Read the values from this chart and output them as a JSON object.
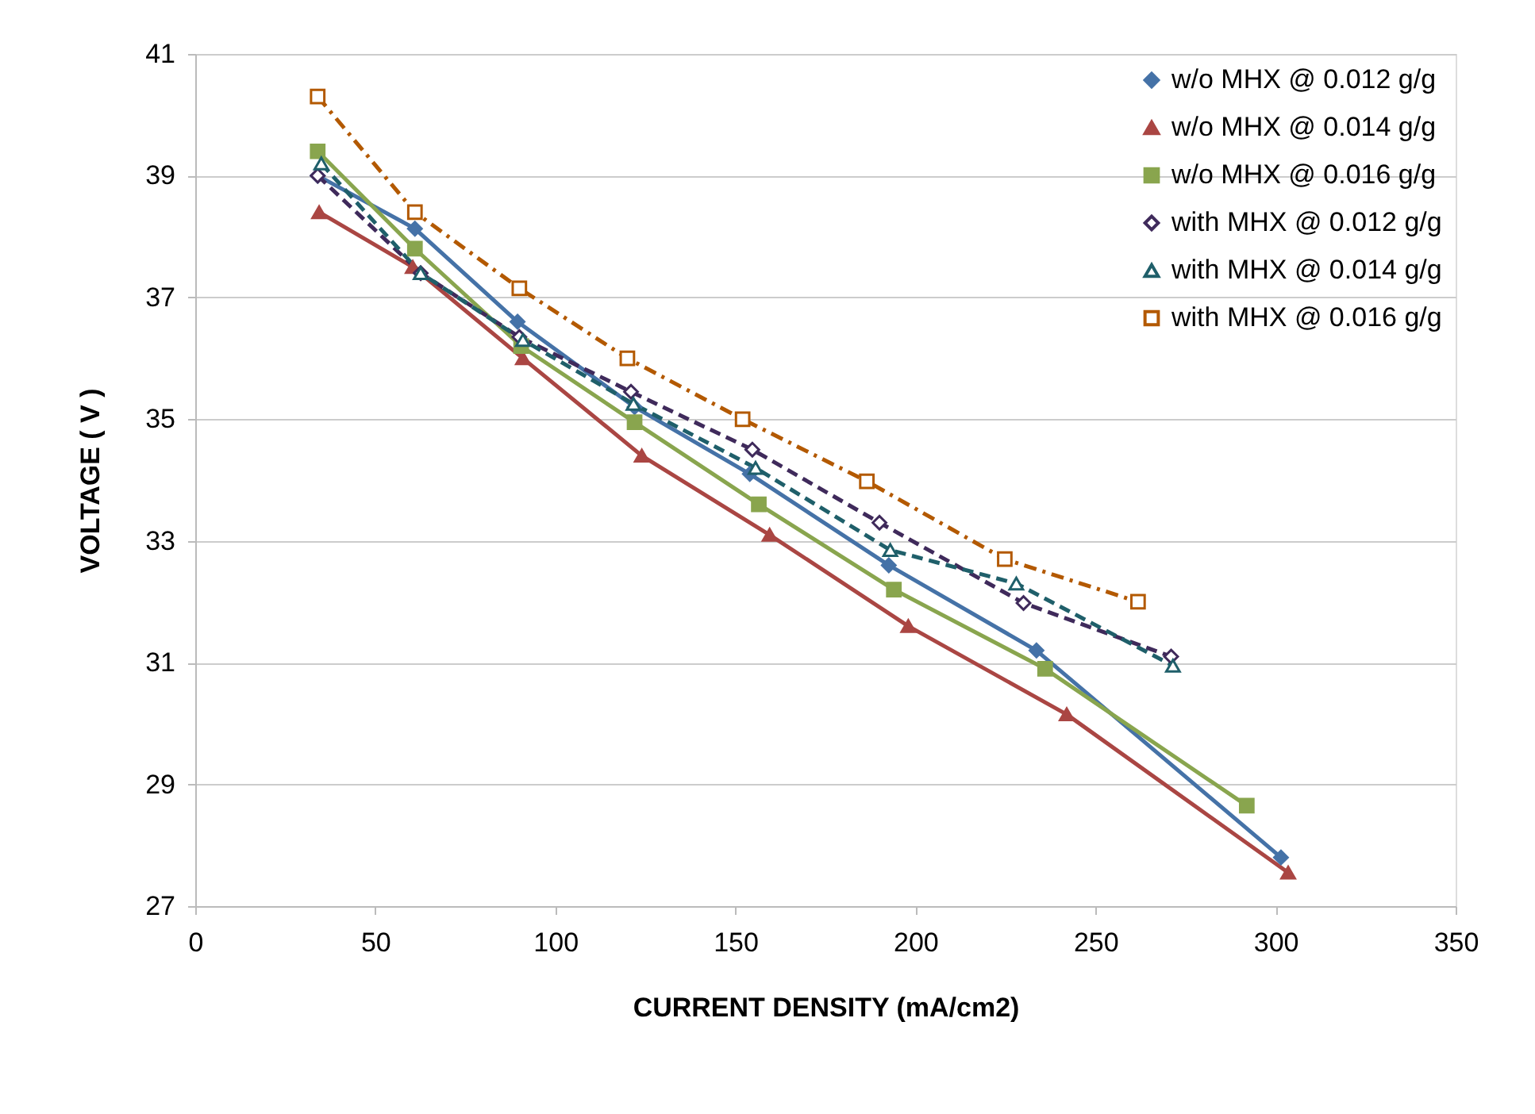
{
  "chart_data": {
    "type": "line",
    "xlabel": "CURRENT DENSITY  (mA/cm2)",
    "ylabel": "VOLTAGE  ( V )",
    "xlim": [
      0,
      350
    ],
    "xticks": [
      0,
      50,
      100,
      150,
      200,
      250,
      300,
      350
    ],
    "ylim": [
      27,
      41
    ],
    "yticks": [
      27,
      29,
      31,
      33,
      35,
      37,
      39,
      41
    ],
    "grid": "y",
    "legend": "top right",
    "series": [
      {
        "name": "w/o MHX @ 0.012 g/g",
        "color": "#4572a7",
        "marker": "diamond",
        "line_style": "solid",
        "x": [
          34,
          61,
          89.5,
          122,
          154,
          192.6,
          233.6,
          301.5
        ],
        "values": [
          39.0,
          38.13,
          36.6,
          35.2,
          34.1,
          32.6,
          31.2,
          27.8
        ]
      },
      {
        "name": "w/o MHX @ 0.014 g/g",
        "color": "#aa4643",
        "marker": "triangle",
        "line_style": "solid",
        "x": [
          34.4,
          60.4,
          91,
          124,
          159.5,
          198,
          242,
          303.5
        ],
        "values": [
          38.4,
          37.5,
          36.0,
          34.4,
          33.1,
          31.6,
          30.15,
          27.55
        ]
      },
      {
        "name": "w/o MHX @ 0.016 g/g",
        "color": "#89a54e",
        "marker": "square",
        "line_style": "solid",
        "x": [
          34,
          61,
          90.5,
          122,
          156.5,
          194,
          236,
          292
        ],
        "values": [
          39.4,
          37.8,
          36.2,
          34.95,
          33.6,
          32.2,
          30.9,
          28.65
        ]
      },
      {
        "name": "with MHX @ 0.012 g/g",
        "color": "#3f2a5b",
        "marker": "diamond",
        "line_style": "dashed",
        "x": [
          34,
          62.6,
          90,
          121,
          154.7,
          190,
          230,
          271
        ],
        "values": [
          39.0,
          37.4,
          36.35,
          35.45,
          34.5,
          33.3,
          31.98,
          31.1
        ]
      },
      {
        "name": "with MHX @ 0.014 g/g",
        "color": "#1f5f6a",
        "marker": "triangle",
        "line_style": "dashed",
        "x": [
          35,
          62.6,
          91,
          121.7,
          155.6,
          193,
          228,
          271.5
        ],
        "values": [
          39.2,
          37.4,
          36.3,
          35.25,
          34.2,
          32.85,
          32.3,
          30.95
        ]
      },
      {
        "name": "with MHX @ 0.016 g/g",
        "color": "#b35900",
        "marker": "square",
        "line_style": "dotted",
        "x": [
          34,
          61,
          90,
          120,
          152,
          186.5,
          224.8,
          261.8
        ],
        "values": [
          40.3,
          38.4,
          37.15,
          36.0,
          35.0,
          33.98,
          32.7,
          32.0
        ]
      }
    ]
  }
}
